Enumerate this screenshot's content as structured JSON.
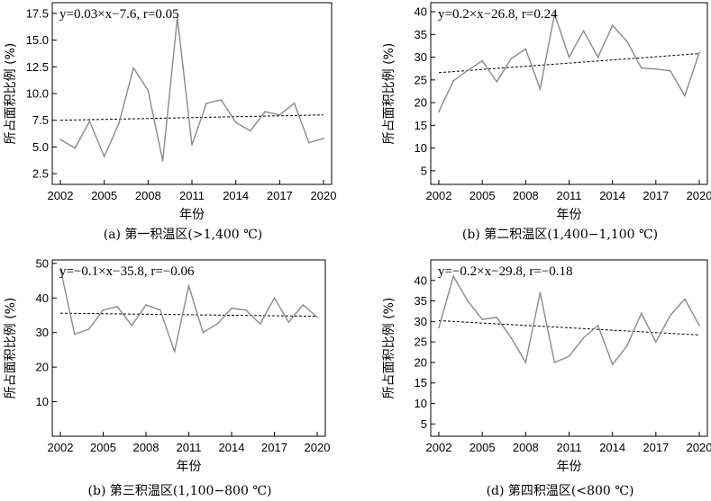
{
  "chart_data": [
    {
      "type": "line",
      "equation": "y=0.03×x−7.6, r=0.05",
      "ylabel": "所占面积比例 (%)",
      "xlabel": "年份",
      "caption": "(a) 第一积温区(>1,400 ℃)",
      "xlim": [
        2002,
        2020
      ],
      "ylim": [
        1.5,
        18.5
      ],
      "xticks": [
        2002,
        2005,
        2008,
        2011,
        2014,
        2017,
        2020
      ],
      "yticks": [
        2.5,
        5.0,
        7.5,
        10.0,
        12.5,
        15.0,
        17.5
      ],
      "ytick_labels": [
        "2.5",
        "5.0",
        "7.5",
        "10.0",
        "12.5",
        "15.0",
        "17.5"
      ],
      "series": [
        {
          "x": [
            2002,
            2003,
            2004,
            2005,
            2006,
            2007,
            2008,
            2009,
            2010,
            2011,
            2012,
            2013,
            2014,
            2015,
            2016,
            2017,
            2018,
            2019,
            2020
          ],
          "values": [
            5.7,
            4.9,
            7.4,
            4.1,
            7.2,
            12.4,
            10.3,
            3.7,
            17.1,
            5.2,
            9.1,
            9.4,
            7.3,
            6.5,
            8.3,
            8.0,
            9.1,
            5.4,
            5.8
          ]
        }
      ],
      "trend": [
        7.5,
        8.0
      ]
    },
    {
      "type": "line",
      "equation": "y=0.2×x−26.8, r=0.24",
      "ylabel": "所占面积比例 (%)",
      "xlabel": "年份",
      "caption": "(b) 第二积温区(1,400−1,100 ℃)",
      "xlim": [
        2002,
        2020
      ],
      "ylim": [
        2,
        42
      ],
      "xticks": [
        2002,
        2005,
        2008,
        2011,
        2014,
        2017,
        2020
      ],
      "yticks": [
        5,
        10,
        15,
        20,
        25,
        30,
        35,
        40
      ],
      "ytick_labels": [
        "5",
        "10",
        "15",
        "20",
        "25",
        "30",
        "35",
        "40"
      ],
      "series": [
        {
          "x": [
            2002,
            2003,
            2004,
            2005,
            2006,
            2007,
            2008,
            2009,
            2010,
            2011,
            2012,
            2013,
            2014,
            2015,
            2016,
            2017,
            2018,
            2019,
            2020
          ],
          "values": [
            18.0,
            24.8,
            27.1,
            29.2,
            24.6,
            29.7,
            31.8,
            23.0,
            39.5,
            30.0,
            35.8,
            30.0,
            37.0,
            33.5,
            27.6,
            27.4,
            27.0,
            21.5,
            31.0
          ]
        }
      ],
      "trend": [
        26.6,
        30.8
      ]
    },
    {
      "type": "line",
      "equation": "y=−0.1×x−35.8, r=−0.06",
      "ylabel": "所占面积比例 (%)",
      "xlabel": "年份",
      "caption": "(b) 第三积温区(1,100−800 ℃)",
      "xlim": [
        2002,
        2020
      ],
      "ylim": [
        0,
        51
      ],
      "xticks": [
        2002,
        2005,
        2008,
        2011,
        2014,
        2017,
        2020
      ],
      "yticks": [
        10,
        20,
        30,
        40,
        50
      ],
      "ytick_labels": [
        "10",
        "20",
        "30",
        "40",
        "50"
      ],
      "series": [
        {
          "x": [
            2002,
            2003,
            2004,
            2005,
            2006,
            2007,
            2008,
            2009,
            2010,
            2011,
            2012,
            2013,
            2014,
            2015,
            2016,
            2017,
            2018,
            2019,
            2020
          ],
          "values": [
            48.5,
            29.5,
            31.0,
            36.5,
            37.5,
            32.0,
            38.0,
            36.5,
            24.5,
            43.5,
            30.0,
            32.5,
            37.0,
            36.5,
            32.5,
            40.0,
            33.0,
            38.0,
            34.5
          ]
        }
      ],
      "trend": [
        35.6,
        34.7
      ]
    },
    {
      "type": "line",
      "equation": "y=−0.2×x−29.8, r=−0.18",
      "ylabel": "所占面积比例 (%)",
      "xlabel": "年份",
      "caption": "(d) 第四积温区(<800 ℃)",
      "xlim": [
        2002,
        2020
      ],
      "ylim": [
        2,
        45
      ],
      "xticks": [
        2002,
        2005,
        2008,
        2011,
        2014,
        2017,
        2020
      ],
      "yticks": [
        5,
        10,
        15,
        20,
        25,
        30,
        35,
        40
      ],
      "ytick_labels": [
        "5",
        "10",
        "15",
        "20",
        "25",
        "30",
        "35",
        "40"
      ],
      "series": [
        {
          "x": [
            2002,
            2003,
            2004,
            2005,
            2006,
            2007,
            2008,
            2009,
            2010,
            2011,
            2012,
            2013,
            2014,
            2015,
            2016,
            2017,
            2018,
            2019,
            2020
          ],
          "values": [
            28.5,
            41.0,
            35.0,
            30.5,
            31.0,
            26.0,
            20.0,
            37.0,
            20.0,
            21.5,
            26.0,
            29.0,
            19.5,
            24.0,
            32.0,
            25.0,
            31.5,
            35.5,
            29.0
          ]
        }
      ],
      "trend": [
        30.2,
        26.7
      ]
    }
  ]
}
